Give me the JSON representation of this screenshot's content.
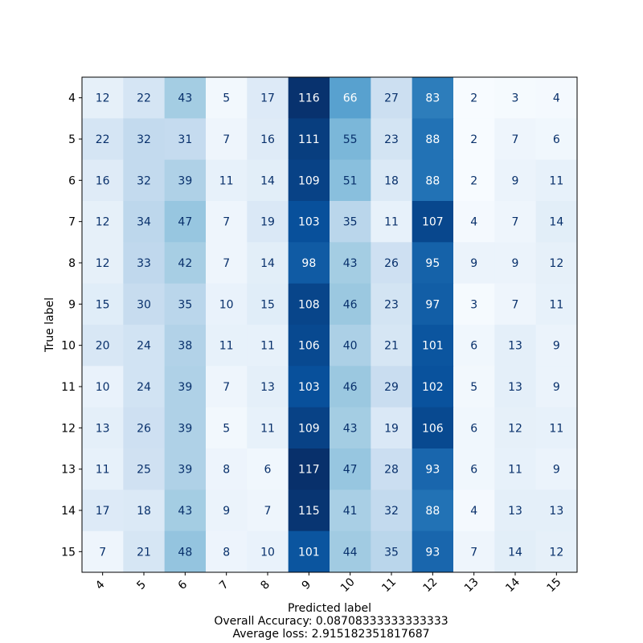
{
  "chart_data": {
    "type": "heatmap",
    "title": "",
    "xlabel": "Predicted label",
    "ylabel": "True label",
    "x_categories": [
      "4",
      "5",
      "6",
      "7",
      "8",
      "9",
      "10",
      "11",
      "12",
      "13",
      "14",
      "15"
    ],
    "y_categories": [
      "4",
      "5",
      "6",
      "7",
      "8",
      "9",
      "10",
      "11",
      "12",
      "13",
      "14",
      "15"
    ],
    "matrix": [
      [
        12,
        22,
        43,
        5,
        17,
        116,
        66,
        27,
        83,
        2,
        3,
        4
      ],
      [
        22,
        32,
        31,
        7,
        16,
        111,
        55,
        23,
        88,
        2,
        7,
        6
      ],
      [
        16,
        32,
        39,
        11,
        14,
        109,
        51,
        18,
        88,
        2,
        9,
        11
      ],
      [
        12,
        34,
        47,
        7,
        19,
        103,
        35,
        11,
        107,
        4,
        7,
        14
      ],
      [
        12,
        33,
        42,
        7,
        14,
        98,
        43,
        26,
        95,
        9,
        9,
        12
      ],
      [
        15,
        30,
        35,
        10,
        15,
        108,
        46,
        23,
        97,
        3,
        7,
        11
      ],
      [
        20,
        24,
        38,
        11,
        11,
        106,
        40,
        21,
        101,
        6,
        13,
        9
      ],
      [
        10,
        24,
        39,
        7,
        13,
        103,
        46,
        29,
        102,
        5,
        13,
        9
      ],
      [
        13,
        26,
        39,
        5,
        11,
        109,
        43,
        19,
        106,
        6,
        12,
        11
      ],
      [
        11,
        25,
        39,
        8,
        6,
        117,
        47,
        28,
        93,
        6,
        11,
        9
      ],
      [
        17,
        18,
        43,
        9,
        7,
        115,
        41,
        32,
        88,
        4,
        13,
        13
      ],
      [
        7,
        21,
        48,
        8,
        10,
        101,
        44,
        35,
        93,
        7,
        14,
        12
      ]
    ],
    "colormap": "Blues",
    "value_range": [
      2,
      117
    ],
    "grid": false,
    "legend": "none",
    "x_tick_rotation_deg": 45,
    "footer_lines": [
      "Overall Accuracy: 0.08708333333333333",
      "Average loss: 2.915182351817687"
    ]
  }
}
